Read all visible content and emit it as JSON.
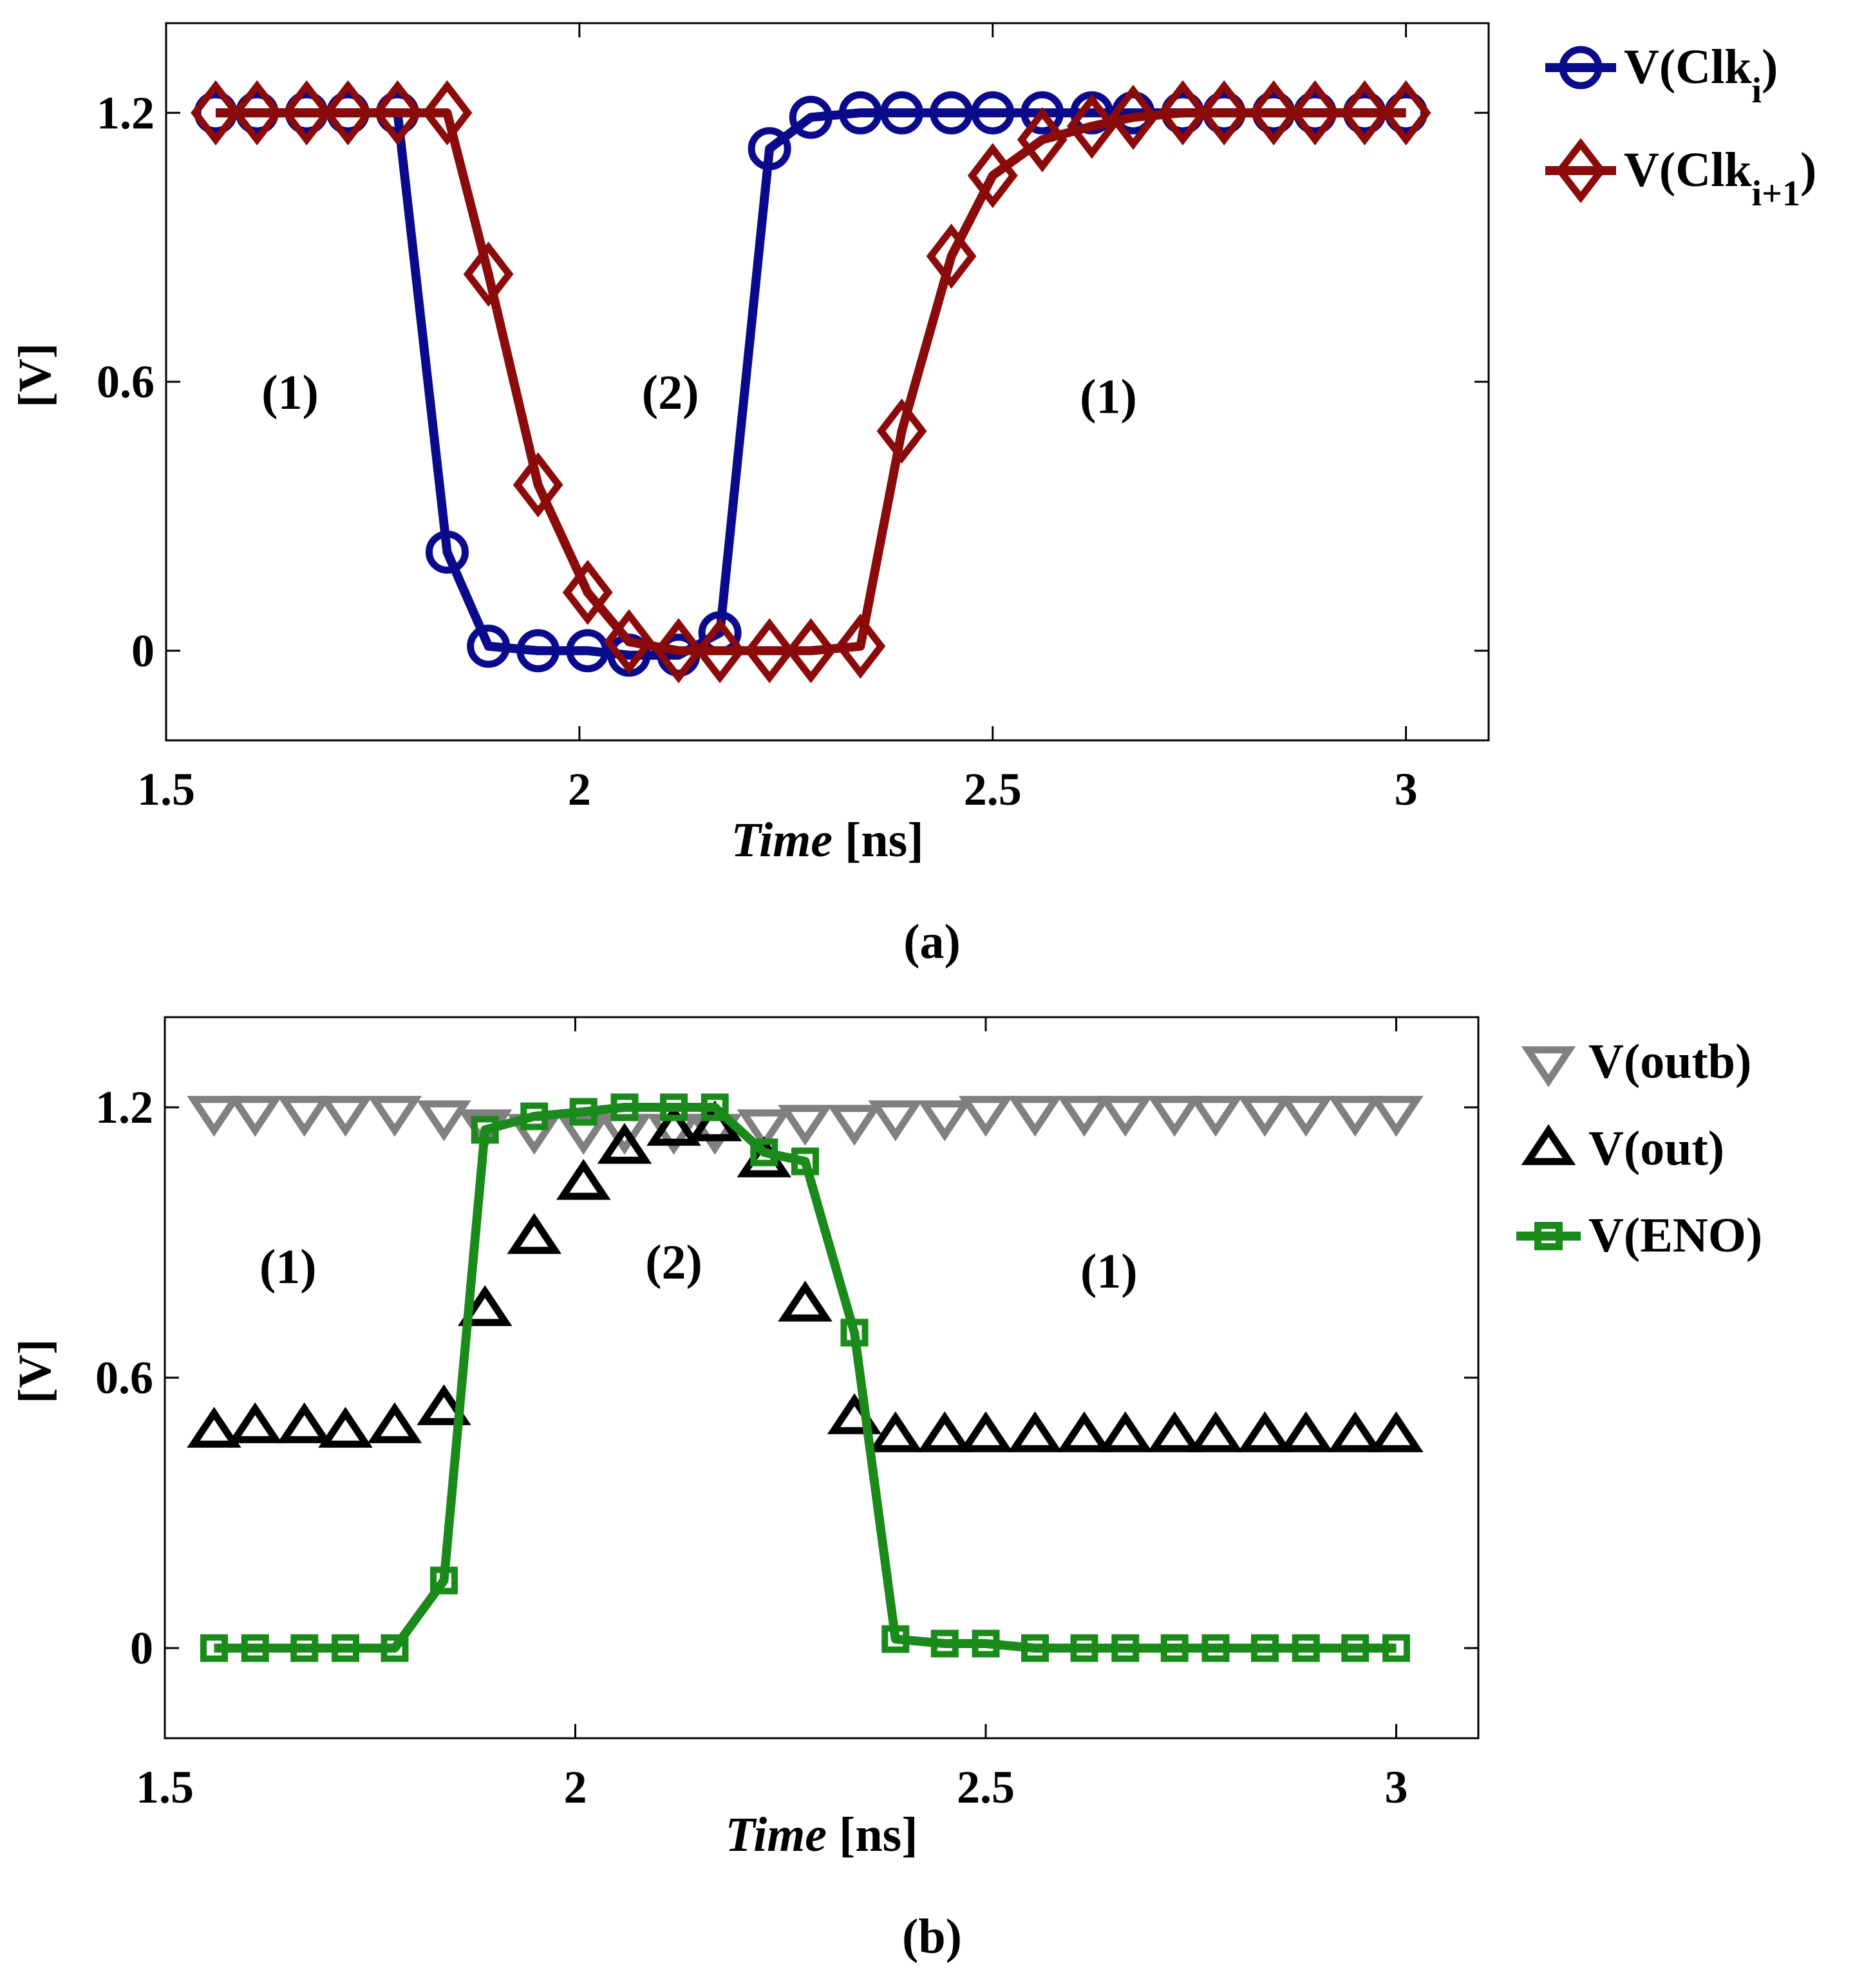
{
  "chart_data": [
    {
      "type": "line",
      "panel": "a",
      "caption": "(a)",
      "xlabel_italic": "Time",
      "xlabel_unit": " [ns]",
      "ylabel": "[V]",
      "xlim": [
        1.5,
        3.1
      ],
      "ylim": [
        -0.2,
        1.4
      ],
      "xticks": [
        1.5,
        2,
        2.5,
        3
      ],
      "xtick_labels": [
        "1.5",
        "2",
        "2.5",
        "3"
      ],
      "yticks": [
        0,
        0.6,
        1.2
      ],
      "ytick_labels": [
        "0",
        "0.6",
        "1.2"
      ],
      "legend_position": "outside-right-top",
      "annotations": [
        {
          "text": "(1)",
          "x": 1.65,
          "y": 0.54
        },
        {
          "text": "(2)",
          "x": 2.11,
          "y": 0.54
        },
        {
          "text": "(1)",
          "x": 2.64,
          "y": 0.53
        }
      ],
      "series": [
        {
          "name": "V(Clk_i)",
          "legend_main": "V(Clk",
          "legend_sub": "i",
          "legend_end": ")",
          "color": "#0a0a8c",
          "marker": "circle",
          "x": [
            1.56,
            1.61,
            1.67,
            1.72,
            1.78,
            1.84,
            1.89,
            1.95,
            2.01,
            2.06,
            2.12,
            2.17,
            2.23,
            2.28,
            2.34,
            2.39,
            2.45,
            2.5,
            2.56,
            2.62,
            2.67,
            2.73,
            2.78,
            2.84,
            2.89,
            2.95,
            3.0
          ],
          "y": [
            1.2,
            1.2,
            1.2,
            1.2,
            1.2,
            0.22,
            0.01,
            0.0,
            0.0,
            -0.01,
            -0.01,
            0.04,
            1.12,
            1.19,
            1.2,
            1.2,
            1.2,
            1.2,
            1.2,
            1.2,
            1.2,
            1.2,
            1.2,
            1.2,
            1.2,
            1.2,
            1.2
          ]
        },
        {
          "name": "V(Clk_i+1)",
          "legend_main": "V(Clk",
          "legend_sub": "i+1",
          "legend_end": ")",
          "color": "#8b0a0a",
          "marker": "diamond",
          "x": [
            1.56,
            1.61,
            1.67,
            1.72,
            1.78,
            1.84,
            1.89,
            1.95,
            2.01,
            2.06,
            2.12,
            2.17,
            2.23,
            2.28,
            2.34,
            2.39,
            2.45,
            2.5,
            2.56,
            2.62,
            2.67,
            2.73,
            2.78,
            2.84,
            2.89,
            2.95,
            3.0
          ],
          "y": [
            1.2,
            1.2,
            1.2,
            1.2,
            1.2,
            1.2,
            0.84,
            0.37,
            0.13,
            0.02,
            0.0,
            0.0,
            0.0,
            0.0,
            0.01,
            0.49,
            0.88,
            1.06,
            1.14,
            1.17,
            1.19,
            1.2,
            1.2,
            1.2,
            1.2,
            1.2,
            1.2
          ]
        }
      ]
    },
    {
      "type": "line",
      "panel": "b",
      "caption": "(b)",
      "xlabel_italic": "Time",
      "xlabel_unit": " [ns]",
      "ylabel": "[V]",
      "xlim": [
        1.5,
        3.1
      ],
      "ylim": [
        -0.2,
        1.4
      ],
      "xticks": [
        1.5,
        2,
        2.5,
        3
      ],
      "xtick_labels": [
        "1.5",
        "2",
        "2.5",
        "3"
      ],
      "yticks": [
        0,
        0.6,
        1.2
      ],
      "ytick_labels": [
        "0",
        "0.6",
        "1.2"
      ],
      "legend_position": "outside-right-top",
      "annotations": [
        {
          "text": "(1)",
          "x": 1.65,
          "y": 0.81
        },
        {
          "text": "(2)",
          "x": 2.12,
          "y": 0.82
        },
        {
          "text": "(1)",
          "x": 2.65,
          "y": 0.8
        }
      ],
      "series": [
        {
          "name": "V(outb)",
          "color": "#808080",
          "marker": "triangle-down",
          "line": false,
          "x": [
            1.56,
            1.61,
            1.67,
            1.72,
            1.78,
            1.84,
            1.89,
            1.95,
            2.01,
            2.06,
            2.12,
            2.17,
            2.23,
            2.28,
            2.34,
            2.39,
            2.45,
            2.5,
            2.56,
            2.62,
            2.67,
            2.73,
            2.78,
            2.84,
            2.89,
            2.95,
            3.0
          ],
          "y": [
            1.19,
            1.19,
            1.19,
            1.19,
            1.19,
            1.18,
            1.16,
            1.15,
            1.15,
            1.15,
            1.15,
            1.15,
            1.16,
            1.17,
            1.17,
            1.18,
            1.18,
            1.19,
            1.19,
            1.19,
            1.19,
            1.19,
            1.19,
            1.19,
            1.19,
            1.19,
            1.19
          ]
        },
        {
          "name": "V(out)",
          "color": "#000000",
          "marker": "triangle-up",
          "line": false,
          "x": [
            1.56,
            1.61,
            1.67,
            1.72,
            1.78,
            1.84,
            1.89,
            1.95,
            2.01,
            2.06,
            2.12,
            2.17,
            2.23,
            2.28,
            2.34,
            2.39,
            2.45,
            2.5,
            2.56,
            2.62,
            2.67,
            2.73,
            2.78,
            2.84,
            2.89,
            2.95,
            3.0
          ],
          "y": [
            0.48,
            0.49,
            0.49,
            0.48,
            0.49,
            0.53,
            0.75,
            0.91,
            1.03,
            1.11,
            1.15,
            1.16,
            1.08,
            0.76,
            0.51,
            0.47,
            0.47,
            0.47,
            0.47,
            0.47,
            0.47,
            0.47,
            0.47,
            0.47,
            0.47,
            0.47,
            0.47
          ]
        },
        {
          "name": "V(ENO)",
          "color": "#1a8a1a",
          "marker": "square",
          "line": true,
          "x": [
            1.56,
            1.61,
            1.67,
            1.72,
            1.78,
            1.84,
            1.89,
            1.95,
            2.01,
            2.06,
            2.12,
            2.17,
            2.23,
            2.28,
            2.34,
            2.39,
            2.45,
            2.5,
            2.56,
            2.62,
            2.67,
            2.73,
            2.78,
            2.84,
            2.89,
            2.95,
            3.0
          ],
          "y": [
            0.0,
            0.0,
            0.0,
            0.0,
            0.0,
            0.15,
            1.15,
            1.18,
            1.19,
            1.2,
            1.2,
            1.2,
            1.1,
            1.08,
            0.7,
            0.02,
            0.01,
            0.01,
            0.0,
            0.0,
            0.0,
            0.0,
            0.0,
            0.0,
            0.0,
            0.0,
            0.0
          ]
        }
      ]
    }
  ]
}
